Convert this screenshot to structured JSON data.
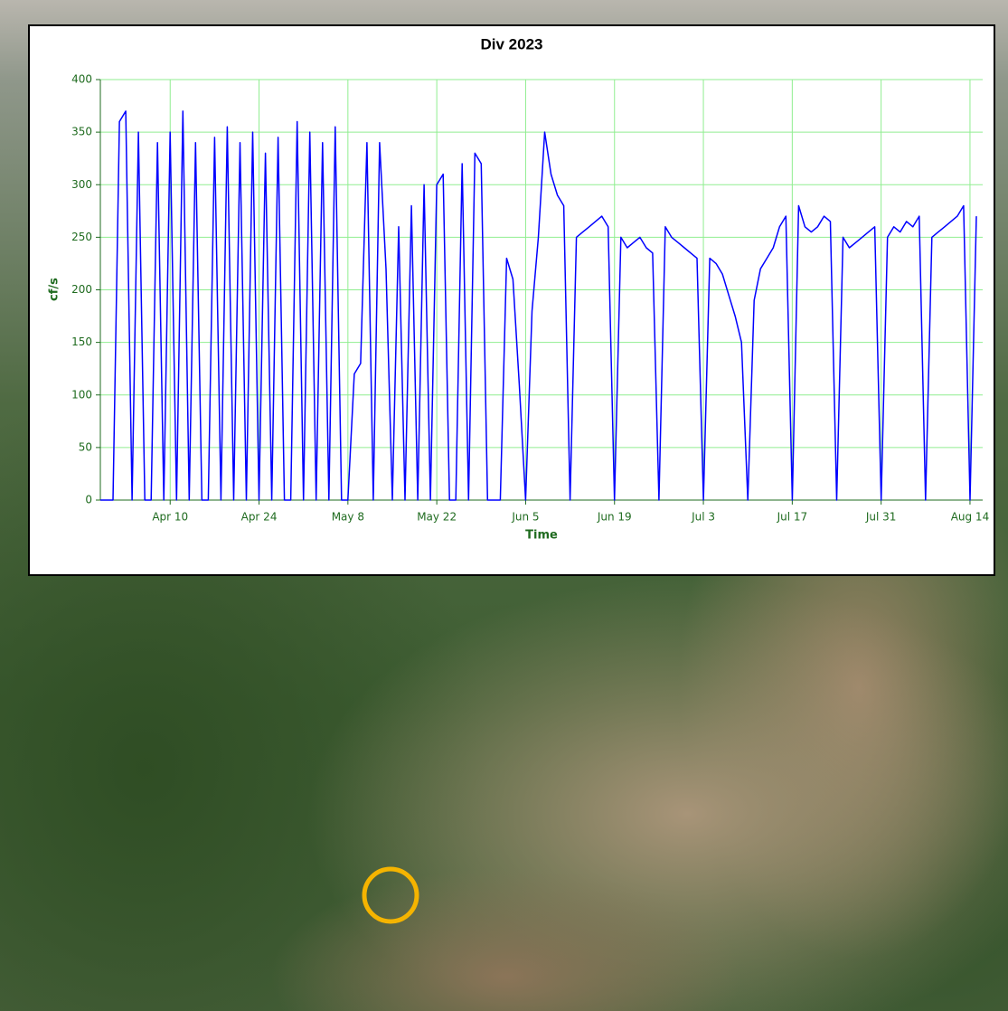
{
  "chart_data": {
    "type": "line",
    "title": "Div 2023",
    "xlabel": "Time",
    "ylabel": "cf/s",
    "color": "#0000ff",
    "grid": true,
    "x": [
      "Mar 30",
      "Mar 31",
      "Apr 1",
      "Apr 2",
      "Apr 3",
      "Apr 4",
      "Apr 5",
      "Apr 6",
      "Apr 7",
      "Apr 8",
      "Apr 9",
      "Apr 10",
      "Apr 11",
      "Apr 12",
      "Apr 13",
      "Apr 14",
      "Apr 15",
      "Apr 16",
      "Apr 17",
      "Apr 18",
      "Apr 19",
      "Apr 20",
      "Apr 21",
      "Apr 22",
      "Apr 23",
      "Apr 24",
      "Apr 25",
      "Apr 26",
      "Apr 27",
      "Apr 28",
      "Apr 29",
      "Apr 30",
      "May 1",
      "May 2",
      "May 3",
      "May 4",
      "May 5",
      "May 6",
      "May 7",
      "May 8",
      "May 9",
      "May 10",
      "May 11",
      "May 12",
      "May 13",
      "May 14",
      "May 15",
      "May 16",
      "May 17",
      "May 18",
      "May 19",
      "May 20",
      "May 21",
      "May 22",
      "May 23",
      "May 24",
      "May 25",
      "May 26",
      "May 27",
      "May 28",
      "May 29",
      "May 30",
      "May 31",
      "Jun 1",
      "Jun 2",
      "Jun 3",
      "Jun 4",
      "Jun 5",
      "Jun 6",
      "Jun 7",
      "Jun 8",
      "Jun 9",
      "Jun 10",
      "Jun 11",
      "Jun 12",
      "Jun 13",
      "Jun 14",
      "Jun 15",
      "Jun 16",
      "Jun 17",
      "Jun 18",
      "Jun 19",
      "Jun 20",
      "Jun 21",
      "Jun 22",
      "Jun 23",
      "Jun 24",
      "Jun 25",
      "Jun 26",
      "Jun 27",
      "Jun 28",
      "Jun 29",
      "Jun 30",
      "Jul 1",
      "Jul 2",
      "Jul 3",
      "Jul 4",
      "Jul 5",
      "Jul 6",
      "Jul 7",
      "Jul 8",
      "Jul 9",
      "Jul 10",
      "Jul 11",
      "Jul 12",
      "Jul 13",
      "Jul 14",
      "Jul 15",
      "Jul 16",
      "Jul 17",
      "Jul 18",
      "Jul 19",
      "Jul 20",
      "Jul 21",
      "Jul 22",
      "Jul 23",
      "Jul 24",
      "Jul 25",
      "Jul 26",
      "Jul 27",
      "Jul 28",
      "Jul 29",
      "Jul 30",
      "Jul 31",
      "Aug 1",
      "Aug 2",
      "Aug 3",
      "Aug 4",
      "Aug 5",
      "Aug 6",
      "Aug 7",
      "Aug 8",
      "Aug 9",
      "Aug 10",
      "Aug 11",
      "Aug 12",
      "Aug 13",
      "Aug 14",
      "Aug 15"
    ],
    "values": [
      0,
      0,
      0,
      360,
      370,
      0,
      350,
      0,
      0,
      340,
      0,
      350,
      0,
      370,
      0,
      340,
      0,
      0,
      345,
      0,
      355,
      0,
      340,
      0,
      350,
      0,
      330,
      0,
      345,
      0,
      0,
      360,
      0,
      350,
      0,
      340,
      0,
      355,
      0,
      0,
      120,
      130,
      340,
      0,
      340,
      220,
      0,
      260,
      0,
      280,
      0,
      300,
      0,
      300,
      310,
      0,
      0,
      320,
      0,
      330,
      320,
      0,
      0,
      0,
      230,
      210,
      110,
      0,
      180,
      250,
      350,
      310,
      290,
      280,
      0,
      250,
      255,
      260,
      265,
      270,
      260,
      0,
      250,
      240,
      245,
      250,
      240,
      235,
      0,
      260,
      250,
      245,
      240,
      235,
      230,
      0,
      230,
      225,
      215,
      195,
      175,
      150,
      0,
      190,
      220,
      230,
      240,
      260,
      270,
      0,
      280,
      260,
      255,
      260,
      270,
      265,
      0,
      250,
      240,
      245,
      250,
      255,
      260,
      0,
      250,
      260,
      255,
      265,
      260,
      270,
      0,
      250,
      255,
      260,
      265,
      270,
      280,
      0,
      270
    ],
    "xlim": [
      "Mar 30",
      "Aug 16"
    ],
    "xticks": [
      "Apr 10",
      "Apr 24",
      "May 8",
      "May 22",
      "Jun 5",
      "Jun 19",
      "Jul 3",
      "Jul 17",
      "Jul 31",
      "Aug 14"
    ],
    "ylim": [
      0,
      400
    ],
    "yticks": [
      0,
      50,
      100,
      150,
      200,
      250,
      300,
      350,
      400
    ]
  }
}
